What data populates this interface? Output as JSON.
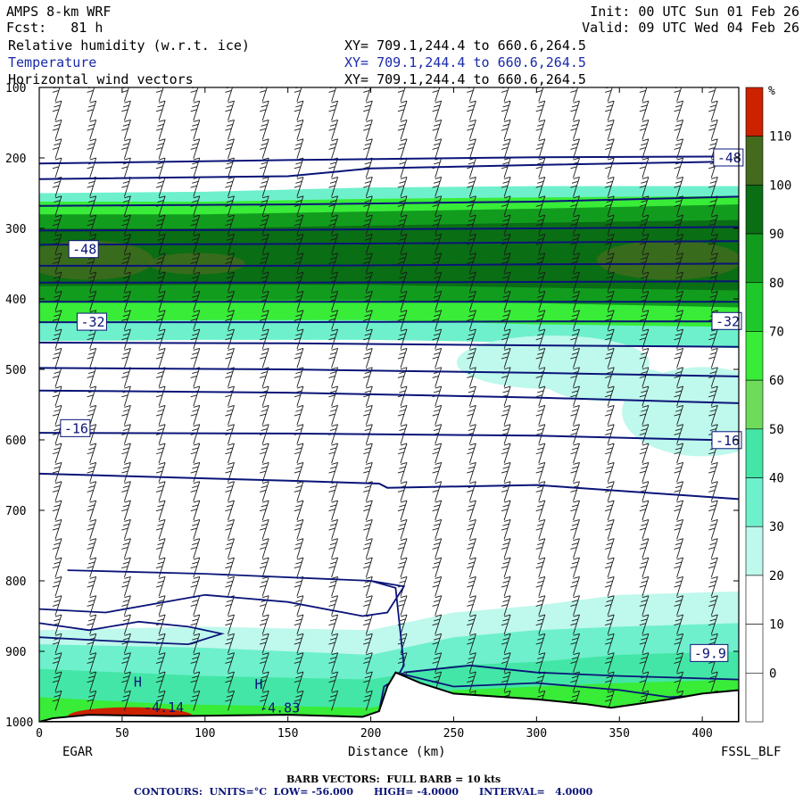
{
  "header": {
    "model": "AMPS 8-km WRF",
    "init": "Init: 00 UTC Sun 01 Feb 26",
    "fcst": "Fcst:   81 h",
    "valid": "Valid: 09 UTC Wed 04 Feb 26",
    "fields": [
      {
        "name": "Relative humidity (w.r.t. ice)",
        "xy": "XY= 709.1,244.4 to 660.6,264.5"
      },
      {
        "name": "Temperature",
        "xy": "XY= 709.1,244.4 to 660.6,264.5"
      },
      {
        "name": "Horizontal wind vectors",
        "xy": "XY= 709.1,244.4 to 660.6,264.5"
      }
    ]
  },
  "chart_data": {
    "type": "heatmap",
    "title": "Relative humidity (w.r.t. ice), Temperature, Horizontal wind vectors",
    "xlabel": "Distance (km)",
    "ylabel": "",
    "xlim": [
      0,
      422
    ],
    "ylim": [
      1000,
      100
    ],
    "x_ticks": [
      0,
      50,
      100,
      150,
      200,
      250,
      300,
      350,
      400
    ],
    "y_ticks": [
      100,
      200,
      300,
      400,
      500,
      600,
      700,
      800,
      900,
      1000
    ],
    "start_label": "EGAR",
    "end_label": "FSSL_BLF",
    "colorbar": {
      "unit": "%",
      "levels": [
        110,
        100,
        90,
        80,
        70,
        60,
        50,
        40,
        30,
        20,
        10,
        0
      ],
      "colors": [
        "#cc2200",
        "#446a1e",
        "#0a6e14",
        "#129c1e",
        "#1ec82a",
        "#38ec38",
        "#6edc5a",
        "#43e6a6",
        "#6ef0cc",
        "#bff8ec",
        "#ffffff",
        "#ffffff",
        "#ffffff"
      ]
    },
    "rh_bands": [
      {
        "level_pct": 40,
        "rows": [
          [
            250,
            466
          ],
          [
            466,
            408
          ],
          [
            250,
            406
          ],
          [
            247,
            250
          ]
        ]
      },
      {
        "level_pct": 70,
        "rows": [
          [
            262,
            440
          ],
          [
            440,
            404
          ],
          [
            262,
            400
          ],
          [
            260,
            262
          ]
        ]
      },
      {
        "level_pct": 90,
        "rows": [
          [
            278,
            412
          ],
          [
            412,
            390
          ],
          [
            278,
            385
          ],
          [
            276,
            278
          ]
        ]
      },
      {
        "level_pct": 100,
        "rows": [
          [
            300,
            385
          ],
          [
            385,
            360
          ],
          [
            300,
            380
          ],
          [
            298,
            300
          ]
        ]
      }
    ],
    "temperature_contours": [
      {
        "label": "-48",
        "points": [
          [
            0,
            208
          ],
          [
            150,
            203
          ],
          [
            300,
            199
          ],
          [
            422,
            198
          ]
        ]
      },
      {
        "label": "-48",
        "points": [
          [
            0,
            230
          ],
          [
            150,
            226
          ],
          [
            200,
            215
          ],
          [
            300,
            210
          ],
          [
            422,
            205
          ]
        ]
      },
      {
        "label": "",
        "points": [
          [
            0,
            268
          ],
          [
            150,
            266
          ],
          [
            300,
            262
          ],
          [
            422,
            255
          ]
        ]
      },
      {
        "label": "",
        "points": [
          [
            0,
            303
          ],
          [
            150,
            302
          ],
          [
            300,
            300
          ],
          [
            422,
            298
          ]
        ]
      },
      {
        "label": "",
        "points": [
          [
            0,
            323
          ],
          [
            150,
            322
          ],
          [
            300,
            320
          ],
          [
            422,
            318
          ]
        ]
      },
      {
        "label": "",
        "points": [
          [
            0,
            353
          ],
          [
            150,
            353
          ],
          [
            300,
            351
          ],
          [
            422,
            350
          ]
        ]
      },
      {
        "label": "",
        "points": [
          [
            0,
            377
          ],
          [
            150,
            377
          ],
          [
            300,
            376
          ],
          [
            422,
            375
          ]
        ]
      },
      {
        "label": "",
        "points": [
          [
            0,
            404
          ],
          [
            150,
            404
          ],
          [
            300,
            404
          ],
          [
            422,
            404
          ]
        ]
      },
      {
        "label": "-32",
        "points": [
          [
            0,
            433
          ],
          [
            150,
            433
          ],
          [
            300,
            432
          ],
          [
            422,
            432
          ]
        ]
      },
      {
        "label": "",
        "points": [
          [
            0,
            462
          ],
          [
            150,
            463
          ],
          [
            300,
            466
          ],
          [
            422,
            468
          ]
        ]
      },
      {
        "label": "",
        "points": [
          [
            0,
            498
          ],
          [
            150,
            500
          ],
          [
            300,
            505
          ],
          [
            422,
            510
          ]
        ]
      },
      {
        "label": "",
        "points": [
          [
            0,
            530
          ],
          [
            150,
            533
          ],
          [
            300,
            540
          ],
          [
            422,
            548
          ]
        ]
      },
      {
        "label": "-16",
        "points": [
          [
            0,
            590
          ],
          [
            150,
            591
          ],
          [
            300,
            594
          ],
          [
            422,
            601
          ]
        ]
      },
      {
        "label": "",
        "points": [
          [
            0,
            648
          ],
          [
            150,
            658
          ],
          [
            205,
            662
          ],
          [
            210,
            668
          ],
          [
            300,
            664
          ],
          [
            422,
            684
          ]
        ]
      }
    ],
    "contour_labels": [
      {
        "text": "-48",
        "x": 409,
        "y": 200
      },
      {
        "text": "-48",
        "x": 20,
        "y": 330
      },
      {
        "text": "-32",
        "x": 25,
        "y": 433
      },
      {
        "text": "-32",
        "x": 408,
        "y": 432
      },
      {
        "text": "-16",
        "x": 15,
        "y": 584
      },
      {
        "text": "-16",
        "x": 408,
        "y": 601
      },
      {
        "text": "-9.9",
        "x": 395,
        "y": 903
      }
    ],
    "highs": [
      {
        "text": "H",
        "x": 57,
        "y": 950
      },
      {
        "text": "-4.14",
        "x": 63,
        "y": 986
      },
      {
        "text": "H",
        "x": 130,
        "y": 953
      },
      {
        "text": "-4.83",
        "x": 133,
        "y": 987
      }
    ]
  },
  "footer": {
    "barb": "BARB VECTORS:  FULL BARB = 10 kts",
    "contours": "CONTOURS:  UNITS=°C  LOW= -56.000      HIGH= -4.0000      INTERVAL=   4.0000"
  },
  "colors": {
    "contour": "#0a1478",
    "field2": "#1a2aa8",
    "barb": "#1a1a1a",
    "footer": "#0a1478"
  }
}
